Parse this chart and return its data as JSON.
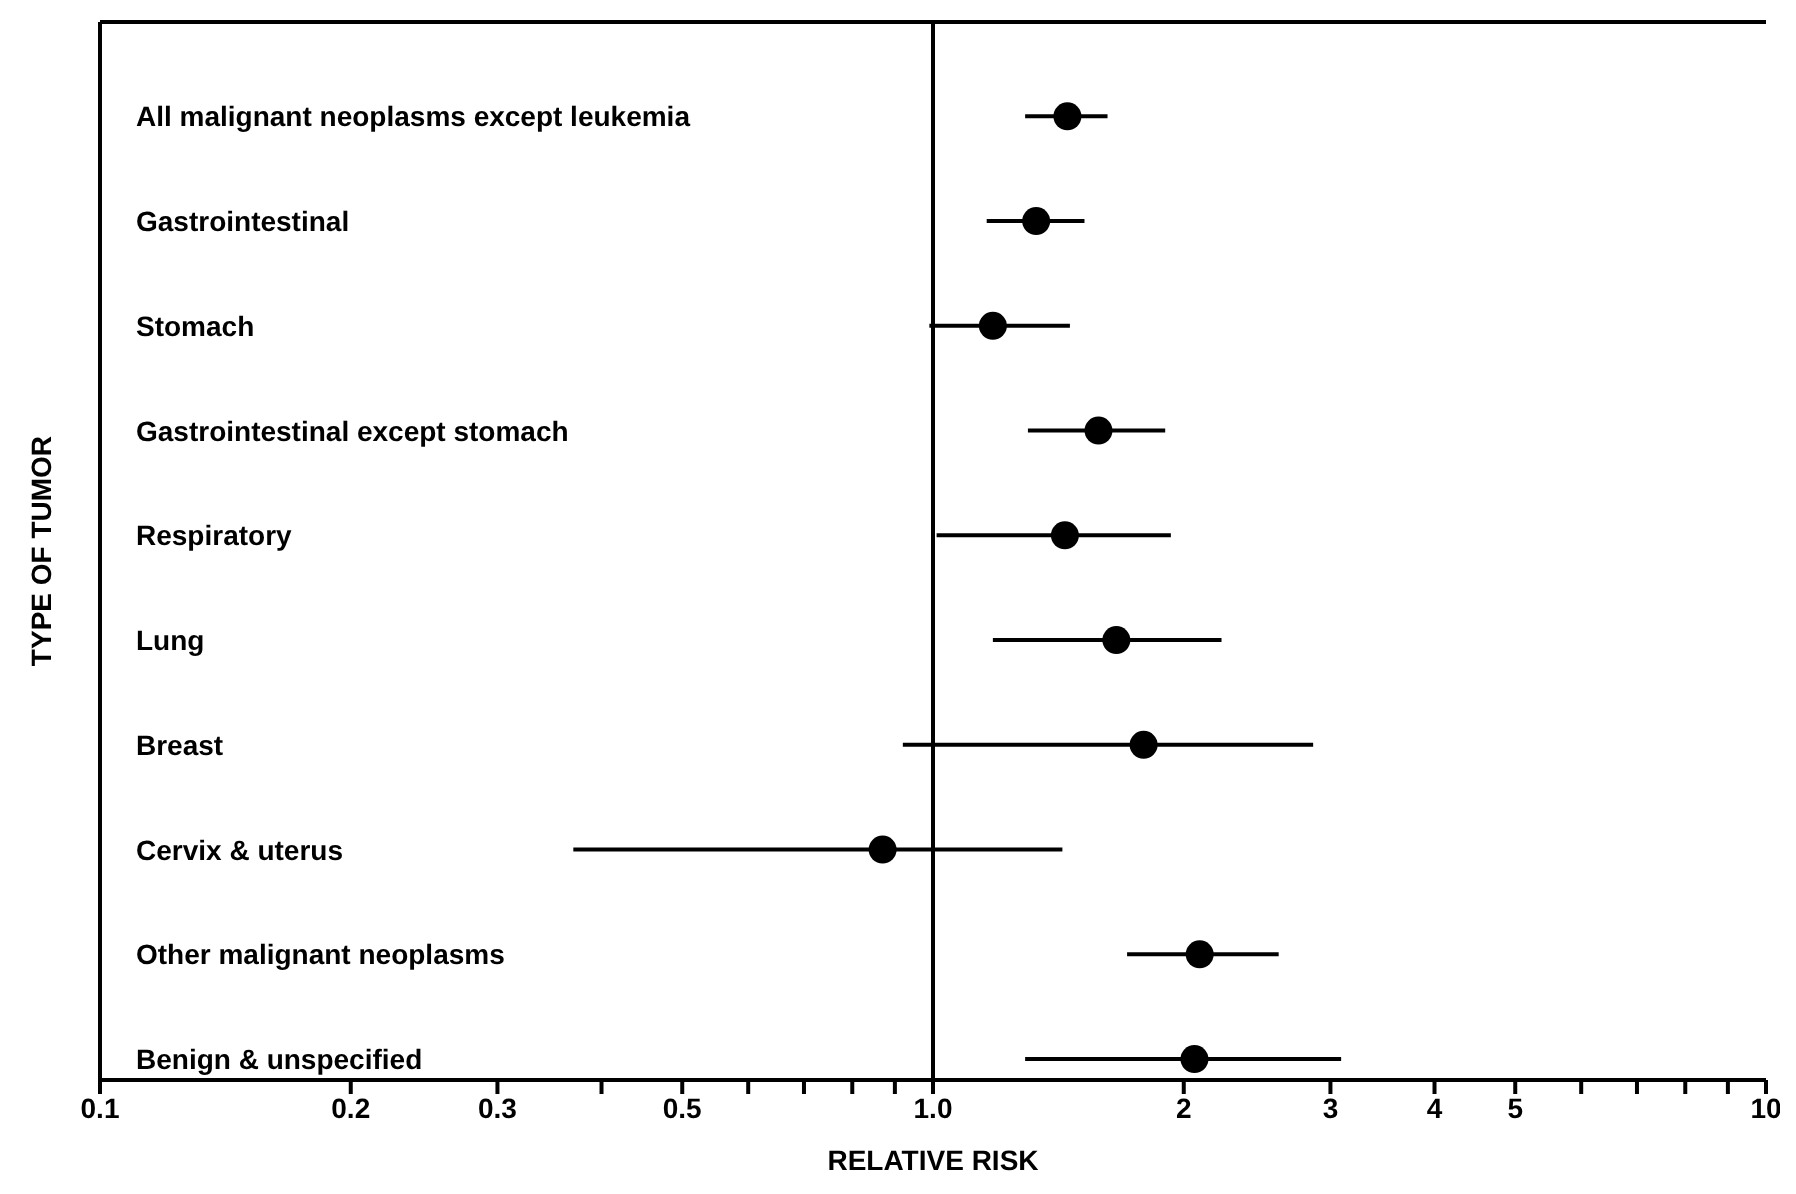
{
  "chart_data": {
    "type": "scatter",
    "xlabel": "RELATIVE RISK",
    "ylabel": "TYPE OF TUMOR",
    "categories": [
      "All malignant neoplasms except leukemia",
      "Gastrointestinal",
      "Stomach",
      "Gastrointestinal except stomach",
      "Respiratory",
      "Lung",
      "Breast",
      "Cervix & uterus",
      "Other malignant neoplasms",
      "Benign & unspecified"
    ],
    "values": [
      1.45,
      1.33,
      1.18,
      1.58,
      1.44,
      1.66,
      1.79,
      0.87,
      2.09,
      2.06
    ],
    "errors": [
      [
        1.29,
        1.62
      ],
      [
        1.16,
        1.52
      ],
      [
        0.99,
        1.46
      ],
      [
        1.3,
        1.9
      ],
      [
        1.01,
        1.93
      ],
      [
        1.18,
        2.22
      ],
      [
        0.92,
        2.86
      ],
      [
        0.37,
        1.43
      ],
      [
        1.71,
        2.6
      ],
      [
        1.29,
        3.09
      ]
    ],
    "color": "#000000",
    "marker": "circle",
    "orientation": "horizontal",
    "log": "x",
    "grid": false,
    "legend": false,
    "xlim": [
      0.1,
      10
    ],
    "xticks": [
      0.1,
      0.2,
      0.3,
      {
        "value": 0.4,
        "label": null
      },
      0.5,
      {
        "value": 0.6,
        "label": null
      },
      {
        "value": 0.7,
        "label": null
      },
      {
        "value": 0.8,
        "label": null
      },
      {
        "value": 0.9,
        "label": null
      },
      {
        "value": 1,
        "label": "1.0"
      },
      2,
      3,
      4,
      5,
      {
        "value": 6,
        "label": null
      },
      {
        "value": 7,
        "label": null
      },
      {
        "value": 8,
        "label": null
      },
      {
        "value": 9,
        "label": null
      },
      10
    ],
    "ref_lines": [
      {
        "axis": "x",
        "value": 1,
        "color": "#000000"
      }
    ]
  }
}
